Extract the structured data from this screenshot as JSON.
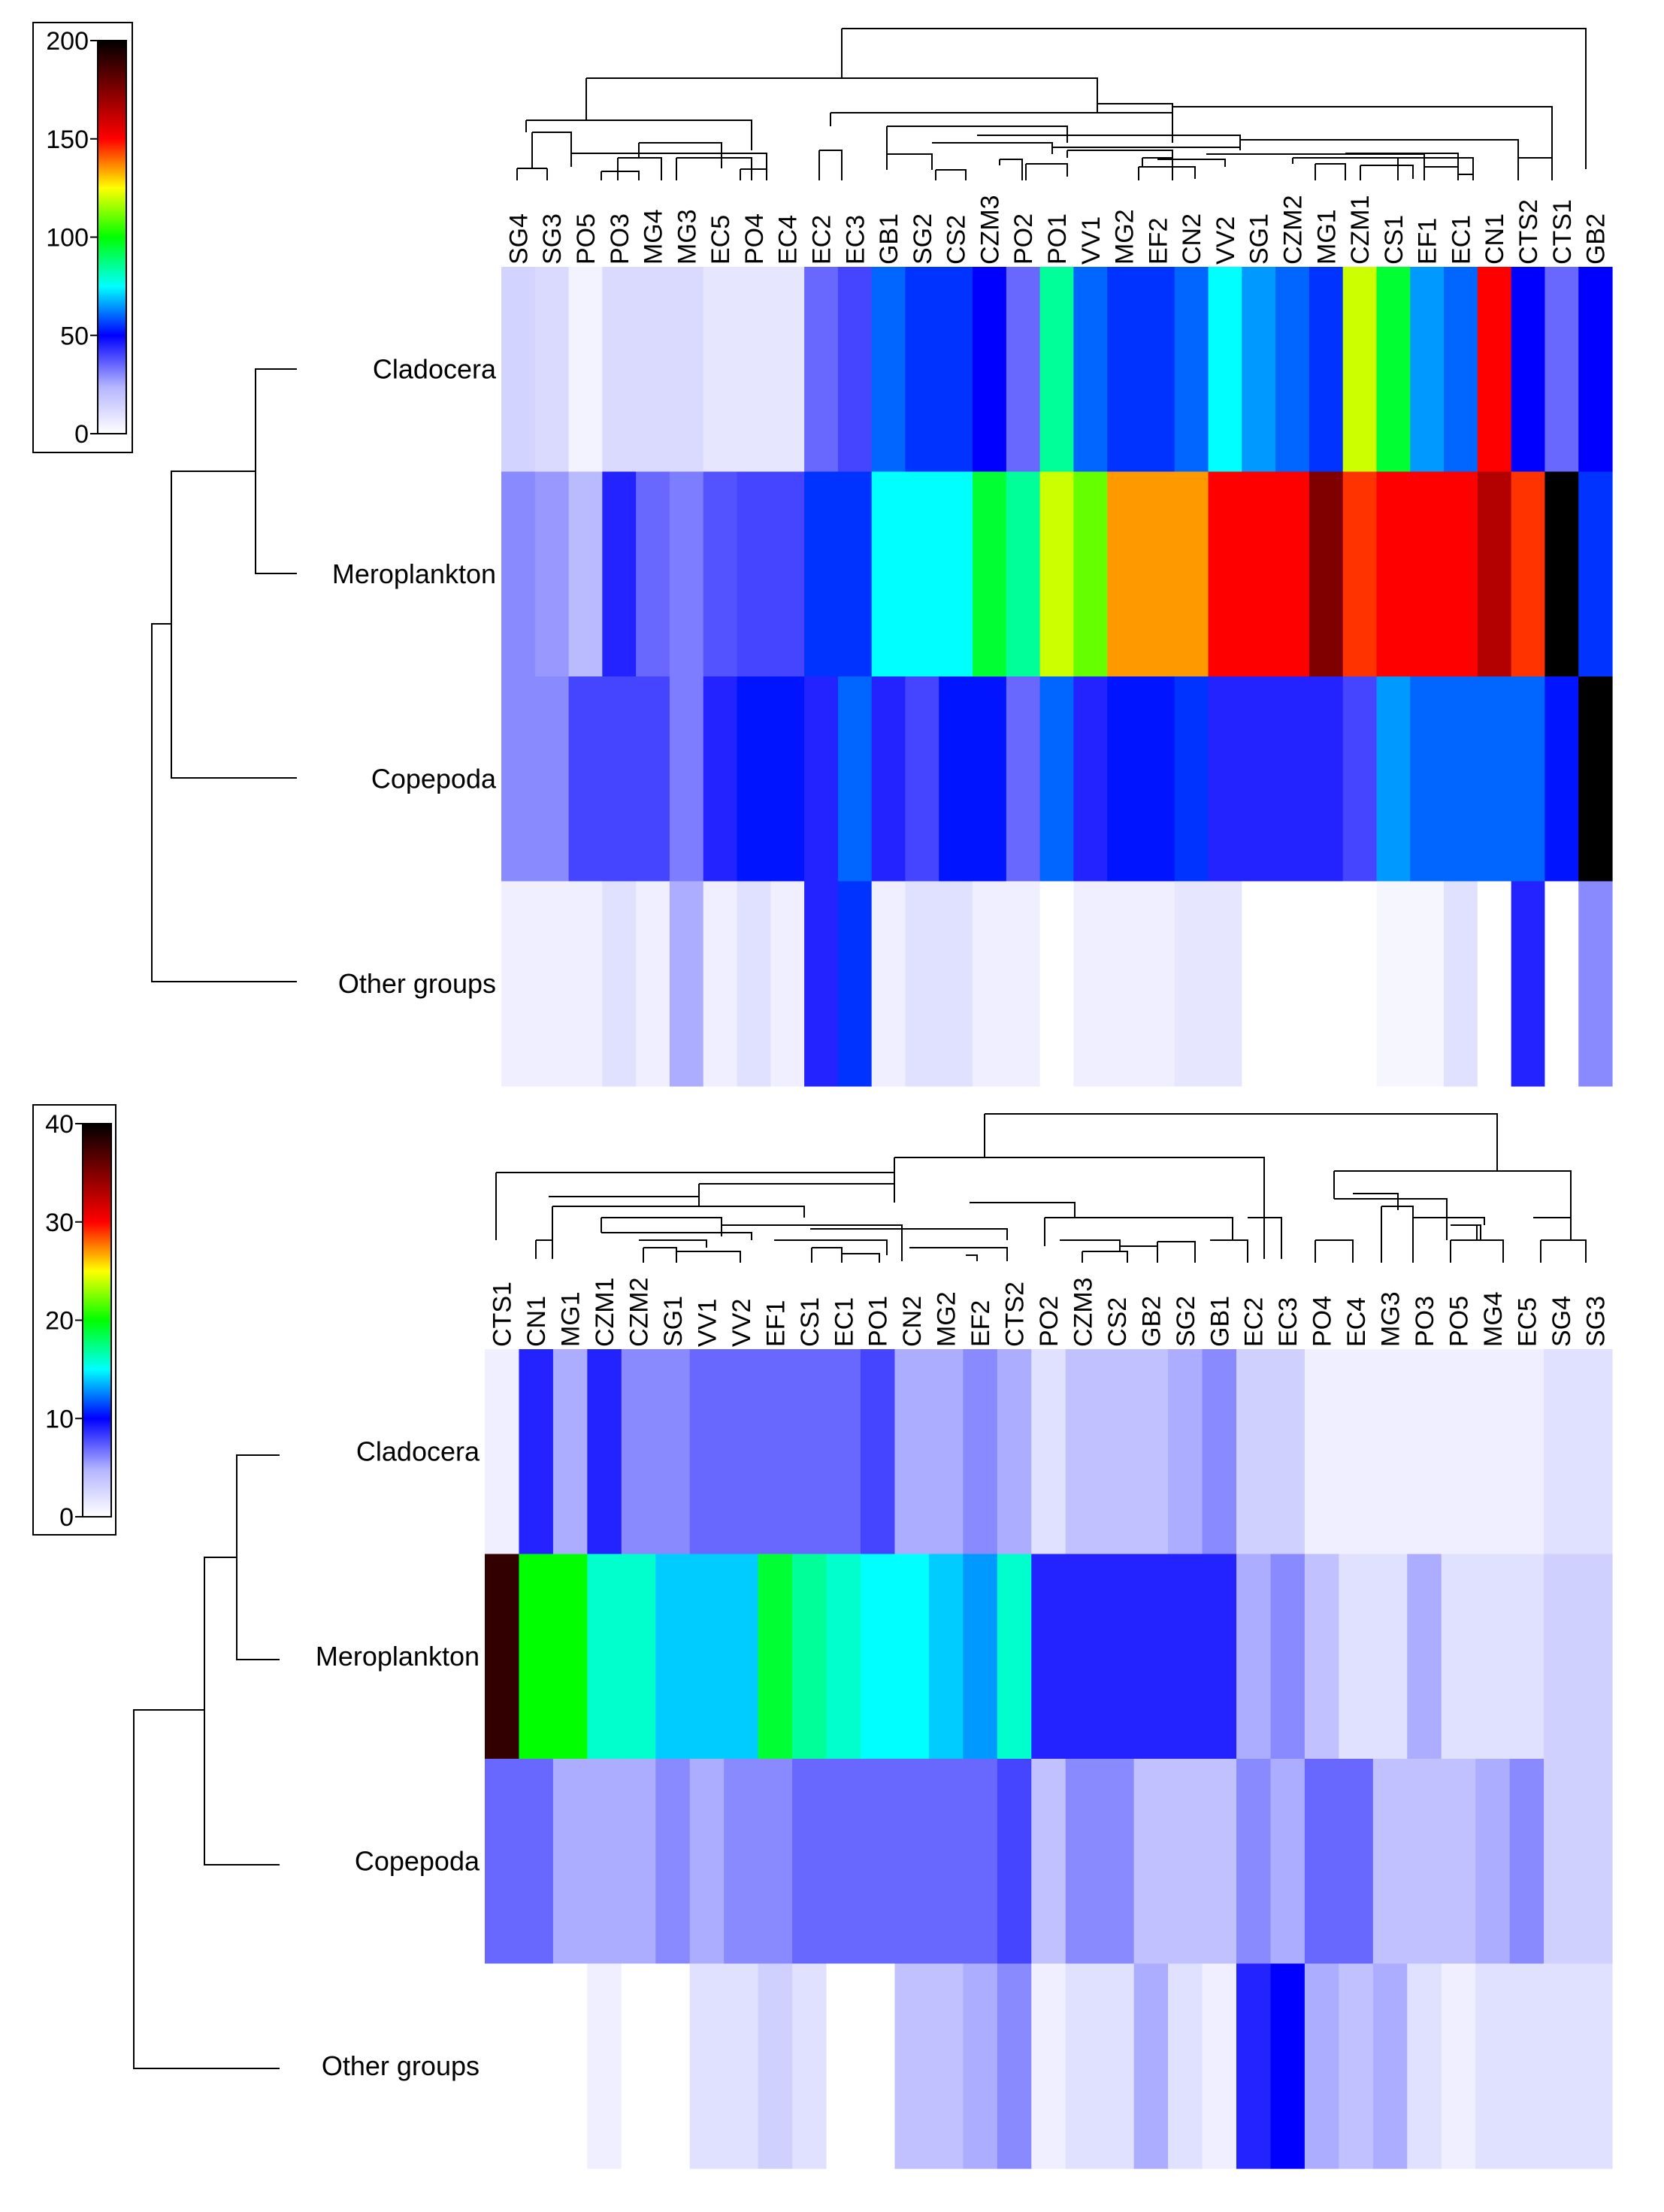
{
  "chart_data": [
    {
      "type": "heatmap",
      "title": "",
      "rows": [
        "Cladocera",
        "Meroplankton",
        "Copepoda",
        "Other groups"
      ],
      "columns": [
        "SG4",
        "SG3",
        "PO5",
        "PO3",
        "MG4",
        "MG3",
        "EC5",
        "PO4",
        "EC4",
        "EC2",
        "EC3",
        "GB1",
        "SG2",
        "CS2",
        "CZM3",
        "PO2",
        "PO1",
        "VV1",
        "MG2",
        "EF2",
        "CN2",
        "VV2",
        "SG1",
        "CZM2",
        "MG1",
        "CZM1",
        "CS1",
        "EF1",
        "EC1",
        "CN1",
        "CTS2",
        "CTS1",
        "GB2"
      ],
      "values": [
        [
          14,
          12,
          4,
          12,
          12,
          12,
          8,
          8,
          8,
          35,
          40,
          60,
          55,
          55,
          50,
          35,
          85,
          60,
          55,
          55,
          60,
          75,
          65,
          60,
          55,
          120,
          95,
          65,
          60,
          150,
          50,
          35,
          50
        ],
        [
          30,
          28,
          22,
          45,
          35,
          32,
          38,
          40,
          40,
          55,
          55,
          75,
          75,
          75,
          95,
          85,
          120,
          110,
          135,
          135,
          135,
          150,
          150,
          150,
          175,
          145,
          150,
          150,
          150,
          165,
          145,
          200,
          55
        ],
        [
          30,
          30,
          40,
          40,
          40,
          32,
          45,
          52,
          52,
          45,
          60,
          45,
          40,
          52,
          52,
          35,
          60,
          45,
          52,
          52,
          55,
          45,
          45,
          45,
          45,
          40,
          65,
          60,
          60,
          60,
          60,
          52,
          200
        ],
        [
          5,
          5,
          5,
          10,
          5,
          25,
          5,
          10,
          5,
          45,
          55,
          5,
          10,
          10,
          5,
          5,
          0,
          5,
          5,
          5,
          8,
          8,
          0,
          0,
          0,
          0,
          3,
          3,
          10,
          0,
          45,
          0,
          30
        ]
      ],
      "scale": {
        "min": 0,
        "max": 200,
        "ticks": [
          "0",
          "50",
          "100",
          "150",
          "200"
        ]
      }
    },
    {
      "type": "heatmap",
      "title": "",
      "rows": [
        "Cladocera",
        "Meroplankton",
        "Copepoda",
        "Other groups"
      ],
      "columns": [
        "CTS1",
        "CN1",
        "MG1",
        "CZM1",
        "CZM2",
        "SG1",
        "VV1",
        "VV2",
        "EF1",
        "CS1",
        "EC1",
        "PO1",
        "CN2",
        "MG2",
        "EF2",
        "CTS2",
        "PO2",
        "CZM3",
        "CS2",
        "GB2",
        "SG2",
        "GB1",
        "EC2",
        "EC3",
        "PO4",
        "EC4",
        "MG3",
        "PO3",
        "PO5",
        "MG4",
        "EC5",
        "SG4",
        "SG3"
      ],
      "values": [
        [
          1,
          9,
          5,
          9,
          6,
          6,
          7,
          7,
          7,
          7,
          7,
          8,
          5,
          5,
          6,
          5,
          2,
          4,
          4,
          4,
          5,
          6,
          3,
          3,
          1,
          1,
          1,
          1,
          1,
          1,
          1,
          2,
          2
        ],
        [
          38,
          20,
          20,
          16,
          16,
          14,
          14,
          14,
          19,
          17,
          16,
          15,
          15,
          14,
          13,
          16,
          9,
          9,
          9,
          9,
          9,
          9,
          5,
          6,
          4,
          2,
          2,
          5,
          2,
          2,
          2,
          3,
          3
        ],
        [
          7,
          7,
          5,
          5,
          5,
          6,
          5,
          6,
          6,
          7,
          7,
          7,
          7,
          7,
          7,
          8,
          4,
          6,
          6,
          4,
          4,
          4,
          6,
          5,
          7,
          7,
          4,
          4,
          4,
          5,
          6,
          3,
          3
        ],
        [
          0,
          0,
          0,
          1,
          0,
          0,
          2,
          2,
          3,
          2,
          0,
          0,
          4,
          4,
          5,
          6,
          1,
          2,
          2,
          5,
          2,
          1,
          9,
          10,
          5,
          4,
          5,
          2,
          1,
          2,
          2,
          2,
          2
        ]
      ],
      "scale": {
        "min": 0,
        "max": 40,
        "ticks": [
          "0",
          "10",
          "20",
          "30",
          "40"
        ]
      }
    }
  ]
}
